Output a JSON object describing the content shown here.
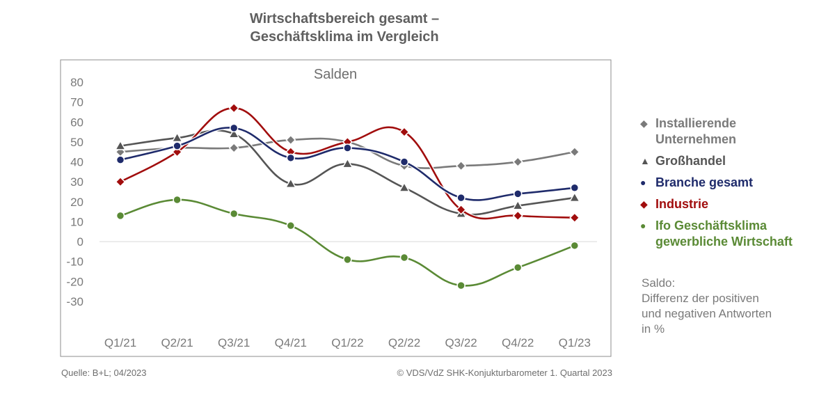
{
  "title_lines": [
    "Wirtschaftsbereich gesamt –",
    "Geschäftsklima im Vergleich"
  ],
  "chart_data": {
    "type": "line",
    "subtitle": "Salden",
    "categories": [
      "Q1/21",
      "Q2/21",
      "Q3/21",
      "Q4/21",
      "Q1/22",
      "Q2/22",
      "Q3/22",
      "Q4/22",
      "Q1/23"
    ],
    "yticks": [
      "80",
      "70",
      "60",
      "50",
      "40",
      "30",
      "20",
      "10",
      "0",
      "-10",
      "-20",
      "-30"
    ],
    "ylim": [
      -30,
      80
    ],
    "grid": false,
    "legend_position": "right",
    "series": [
      {
        "name": "Installierende\nUnternehmen",
        "color": "#7a7a7a",
        "marker": "diamond",
        "values": [
          45,
          47,
          47,
          51,
          50,
          38,
          38,
          40,
          45
        ]
      },
      {
        "name": "Großhandel",
        "color": "#555555",
        "marker": "triangle",
        "values": [
          48,
          52,
          54,
          29,
          39,
          27,
          14,
          18,
          22
        ]
      },
      {
        "name": "Branche gesamt",
        "color": "#1f2b6b",
        "marker": "circle",
        "values": [
          41,
          48,
          57,
          42,
          47,
          40,
          22,
          24,
          27
        ]
      },
      {
        "name": "Industrie",
        "color": "#a10d0d",
        "marker": "diamond",
        "values": [
          30,
          45,
          67,
          45,
          50,
          55,
          16,
          13,
          12
        ]
      },
      {
        "name": "Ifo Geschäftsklima\ngewerbliche Wirtschaft",
        "color": "#5a8a35",
        "marker": "circle",
        "values": [
          13,
          21,
          14,
          8,
          -9,
          -8,
          -22,
          -13,
          -2
        ]
      }
    ]
  },
  "note": "Saldo:\nDifferenz der positiven\nund negativen Antworten\nin %",
  "source": "Quelle: B+L; 04/2023",
  "copyright": "© VDS/VdZ SHK-Konjukturbarometer 1. Quartal 2023"
}
